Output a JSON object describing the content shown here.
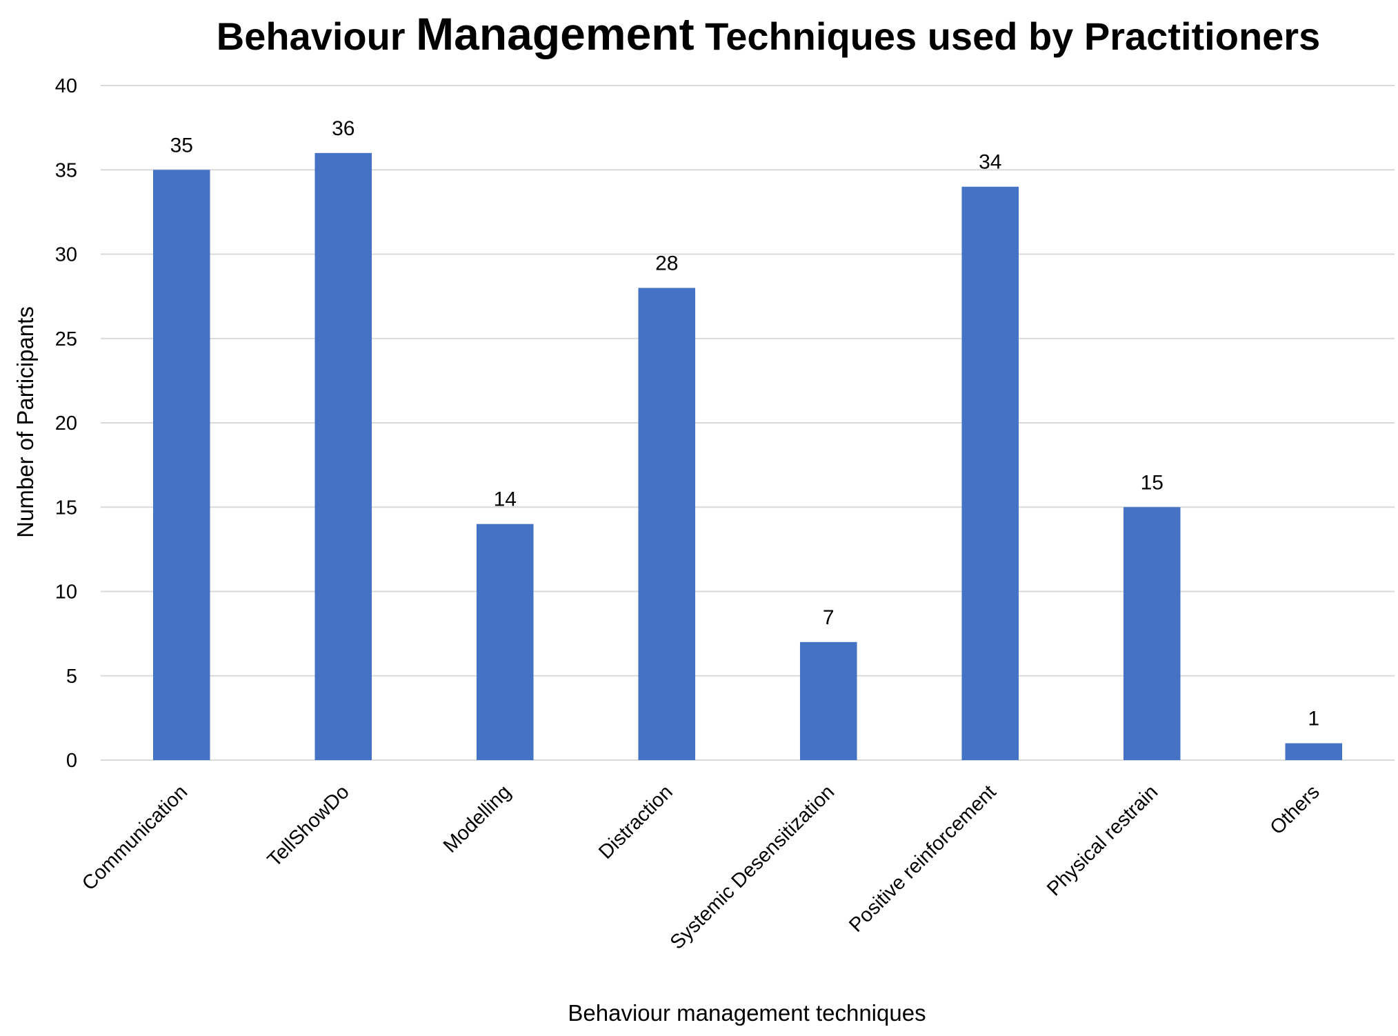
{
  "chart_data": {
    "type": "bar",
    "title_parts": [
      "Behaviour ",
      "Management",
      " Techniques used by Practitioners"
    ],
    "title": "Behaviour Management Techniques used by Practitioners",
    "xlabel": "Behaviour management techniques",
    "ylabel": "Number of Participants",
    "categories": [
      "Communication",
      "TellShowDo",
      "Modelling",
      "Distraction",
      "Systemic Desensitization",
      "Positive reinforcement",
      "Physical restrain",
      "Others"
    ],
    "values": [
      35,
      36,
      14,
      28,
      7,
      34,
      15,
      1
    ],
    "data_labels": [
      "35",
      "36",
      "14",
      "28",
      "7",
      "34",
      "15",
      "1"
    ],
    "yticks": [
      "0",
      "5",
      "10",
      "15",
      "20",
      "25",
      "30",
      "35",
      "40"
    ],
    "ylim": [
      0,
      40
    ],
    "grid": true,
    "legend": "none",
    "bar_color": "#4472C4",
    "grid_color": "#D9D9D9"
  }
}
